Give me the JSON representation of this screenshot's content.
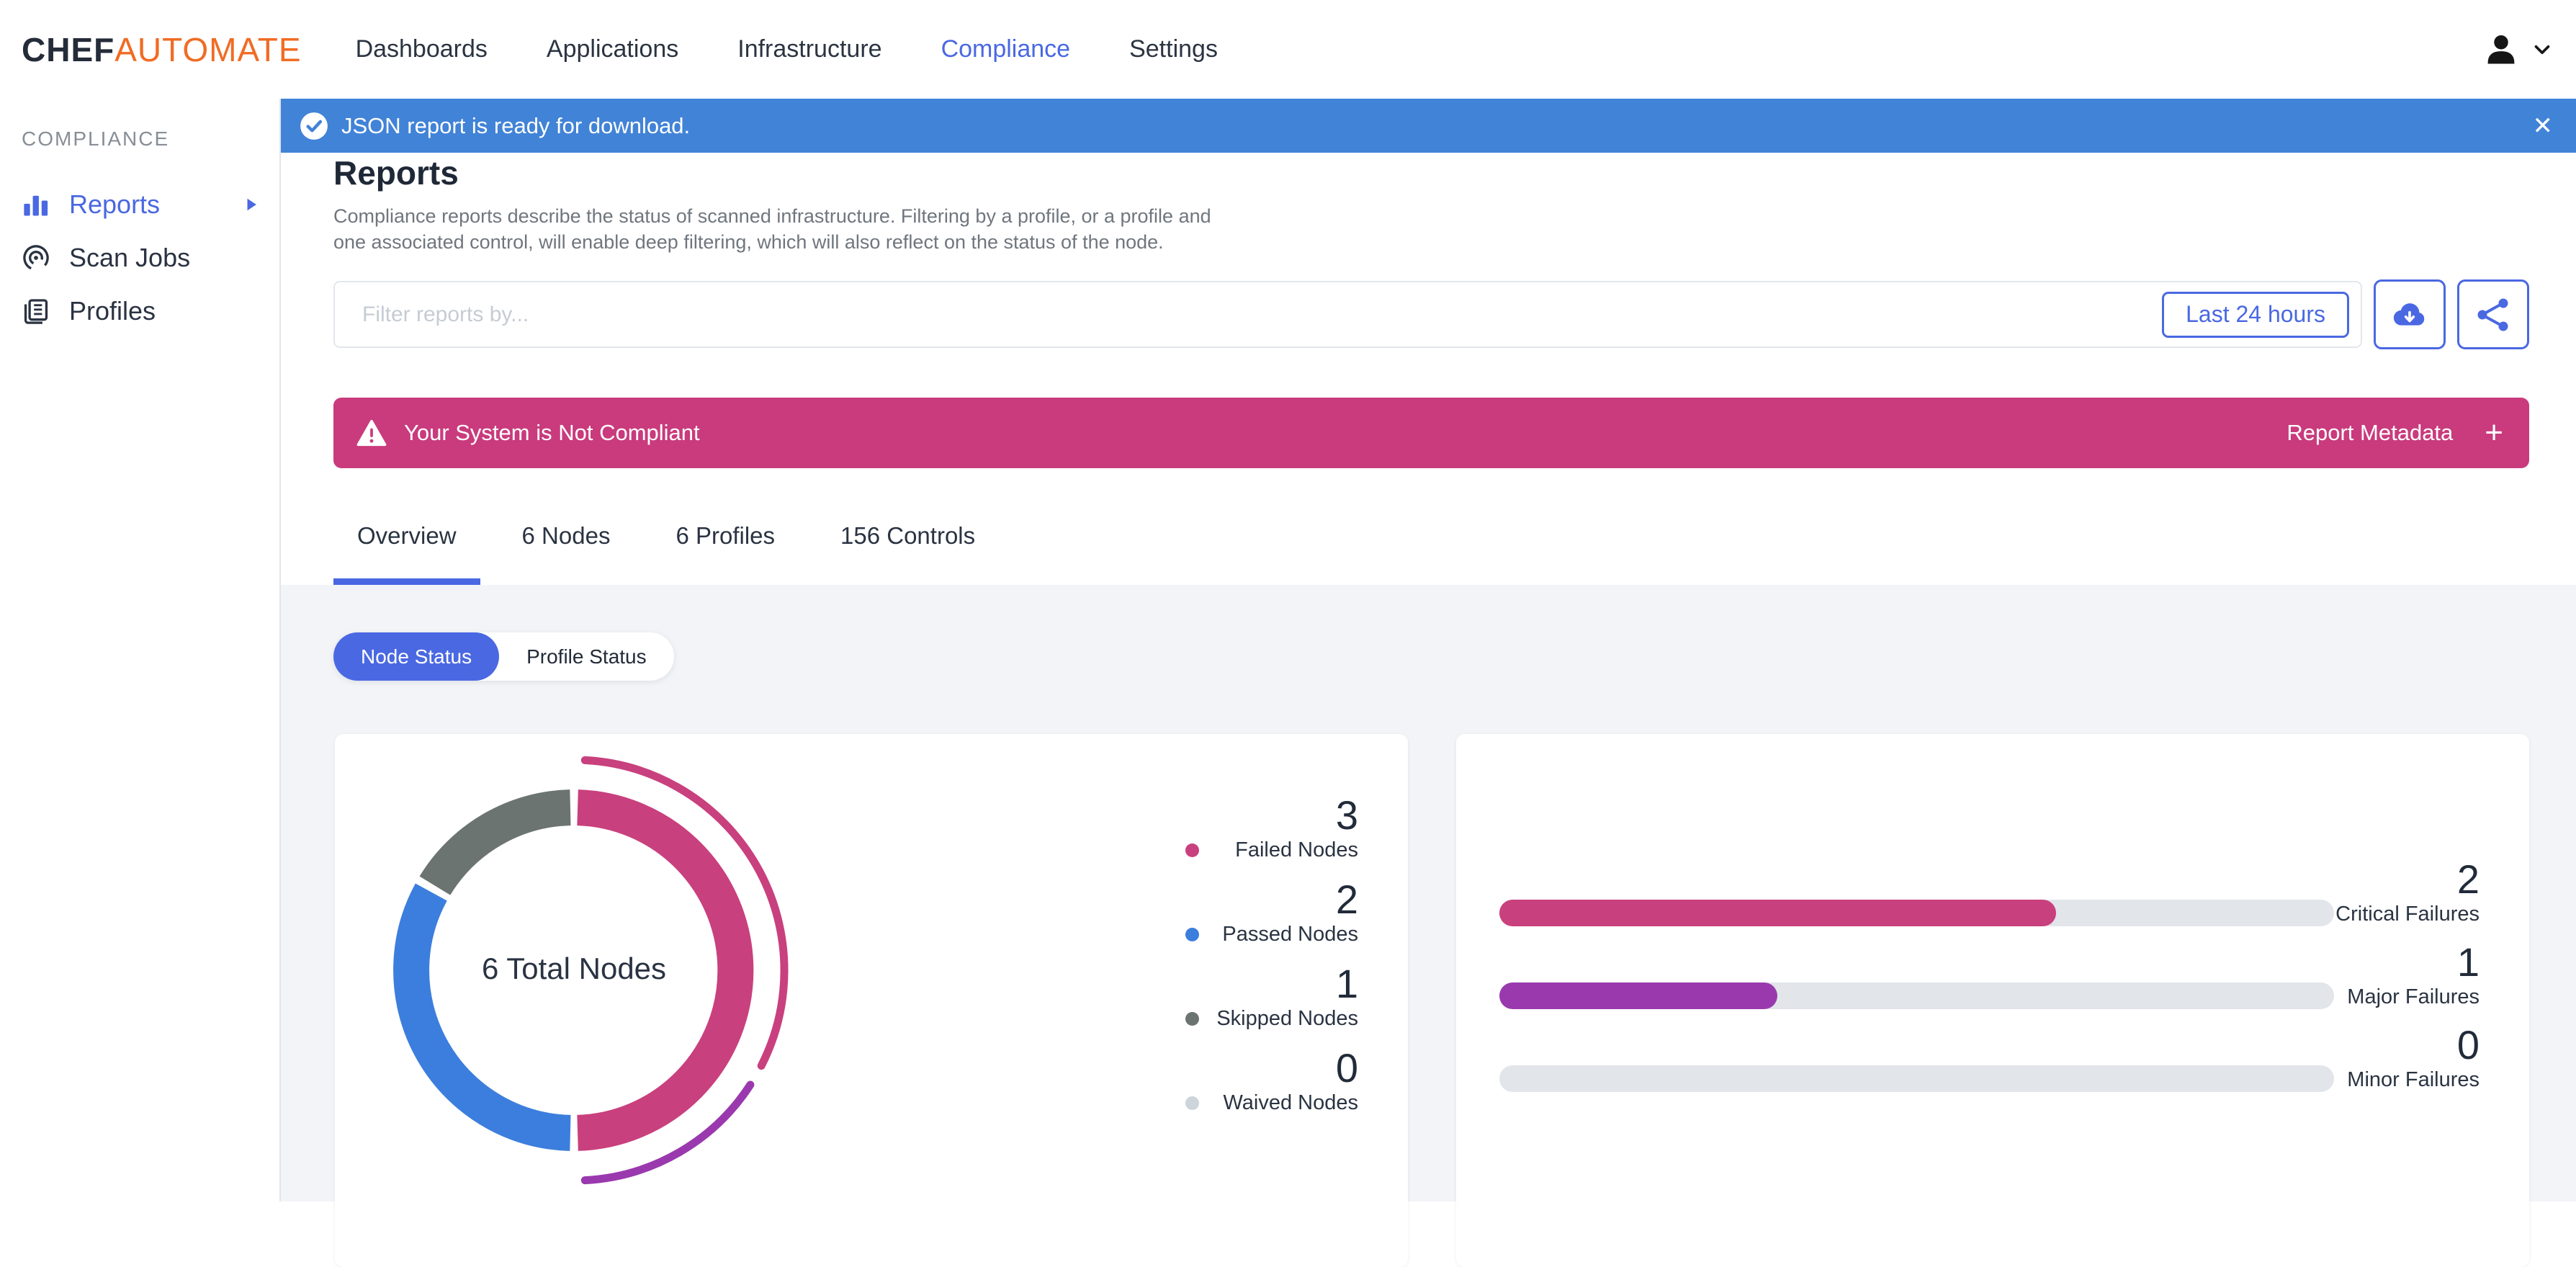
{
  "colors": {
    "accent": "#4a68e2",
    "banner_blue": "#4183d7",
    "magenta": "#c93b7d",
    "purple": "#9a39ae",
    "chart_blue": "#3c7edd",
    "skipped_gray": "#6c7472",
    "waived_gray": "#ccd5db",
    "track_gray": "#e2e5e9",
    "orange": "#f06b24",
    "dark": "#242b39"
  },
  "nav": {
    "brand": {
      "chef": "CHEF",
      "automate": "AUTOMATE"
    },
    "items": [
      {
        "label": "Dashboards",
        "active": false
      },
      {
        "label": "Applications",
        "active": false
      },
      {
        "label": "Infrastructure",
        "active": false
      },
      {
        "label": "Compliance",
        "active": true
      },
      {
        "label": "Settings",
        "active": false
      }
    ]
  },
  "toast": {
    "message": "JSON report is ready for download.",
    "close": "✕"
  },
  "sidebar": {
    "section": "COMPLIANCE",
    "items": [
      {
        "label": "Reports",
        "active": true
      },
      {
        "label": "Scan Jobs",
        "active": false
      },
      {
        "label": "Profiles",
        "active": false
      }
    ]
  },
  "page": {
    "title": "Reports",
    "description": "Compliance reports describe the status of scanned infrastructure. Filtering by a profile, or a profile and one associated control, will enable deep filtering, which will also reflect on the status of the node."
  },
  "filter": {
    "placeholder": "Filter reports by...",
    "time_range": "Last 24 hours"
  },
  "alert": {
    "message": "Your System is Not Compliant",
    "metadata_label": "Report Metadata",
    "plus": "+"
  },
  "tabs": [
    {
      "label": "Overview",
      "active": true
    },
    {
      "label": "6 Nodes",
      "active": false
    },
    {
      "label": "6 Profiles",
      "active": false
    },
    {
      "label": "156 Controls",
      "active": false
    }
  ],
  "status_toggle": [
    {
      "label": "Node Status",
      "active": true
    },
    {
      "label": "Profile Status",
      "active": false
    }
  ],
  "chart_data": [
    {
      "type": "donut",
      "title": "6 Total Nodes",
      "total": 6,
      "segments": [
        {
          "label": "Failed Nodes",
          "value": 3,
          "color": "#c9407e"
        },
        {
          "label": "Passed Nodes",
          "value": 2,
          "color": "#3c7edd"
        },
        {
          "label": "Skipped Nodes",
          "value": 1,
          "color": "#6c7472"
        },
        {
          "label": "Waived Nodes",
          "value": 0,
          "color": "#ccd5db"
        }
      ],
      "outer_arcs": [
        {
          "label": "Critical",
          "value": 2,
          "color": "#c9407e"
        },
        {
          "label": "Major",
          "value": 1,
          "color": "#9a39ae"
        }
      ],
      "legend_position": "right"
    },
    {
      "type": "bar",
      "orientation": "horizontal",
      "categories": [
        "Critical Failures",
        "Major Failures",
        "Minor Failures"
      ],
      "values": [
        2,
        1,
        0
      ],
      "max": 3,
      "colors": [
        "#c9407e",
        "#9a39ae",
        "#e2e5e9"
      ],
      "track_color": "#e2e5e9"
    }
  ]
}
